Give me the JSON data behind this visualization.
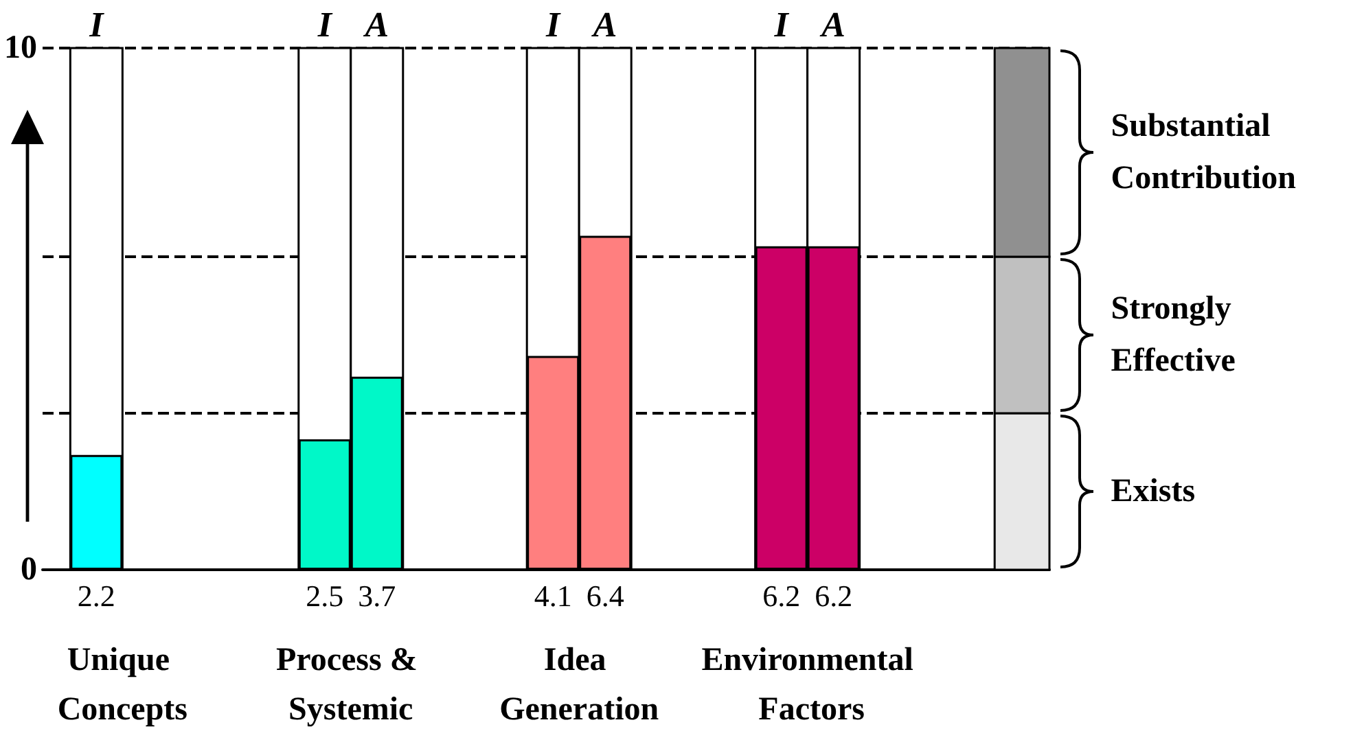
{
  "chart_data": {
    "type": "bar",
    "categories": [
      "Unique Concepts",
      "Process & Systemic",
      "Idea Generation",
      "Environmental Factors"
    ],
    "series": [
      {
        "name": "I",
        "colors": [
          "#00ffff",
          "#00f8c8",
          "#ff7f7f",
          "#cc0066"
        ],
        "values": [
          2.2,
          2.5,
          4.1,
          6.2
        ]
      },
      {
        "name": "A",
        "colors": [
          null,
          "#00f8c8",
          "#ff7f7f",
          "#cc0066"
        ],
        "values": [
          null,
          3.7,
          6.4,
          6.2
        ]
      }
    ],
    "ylim": [
      0,
      10
    ],
    "yticks": [
      0,
      10
    ],
    "data_labels": true,
    "grid": false,
    "legend": false,
    "ref_lines": [
      {
        "axis": "y",
        "value": 3,
        "line_style": "dashed"
      },
      {
        "axis": "y",
        "value": 6,
        "line_style": "dashed"
      },
      {
        "axis": "y",
        "value": 10,
        "line_style": "dashed"
      }
    ],
    "bands": [
      {
        "axis": "y",
        "from": 0,
        "to": 3,
        "label": "Exists",
        "color": "#e8e8e8"
      },
      {
        "axis": "y",
        "from": 3,
        "to": 6,
        "label": "Strongly Effective",
        "color": "#c0c0c0"
      },
      {
        "axis": "y",
        "from": 6,
        "to": 10,
        "label": "Substantial Contribution",
        "color": "#909090"
      }
    ]
  }
}
